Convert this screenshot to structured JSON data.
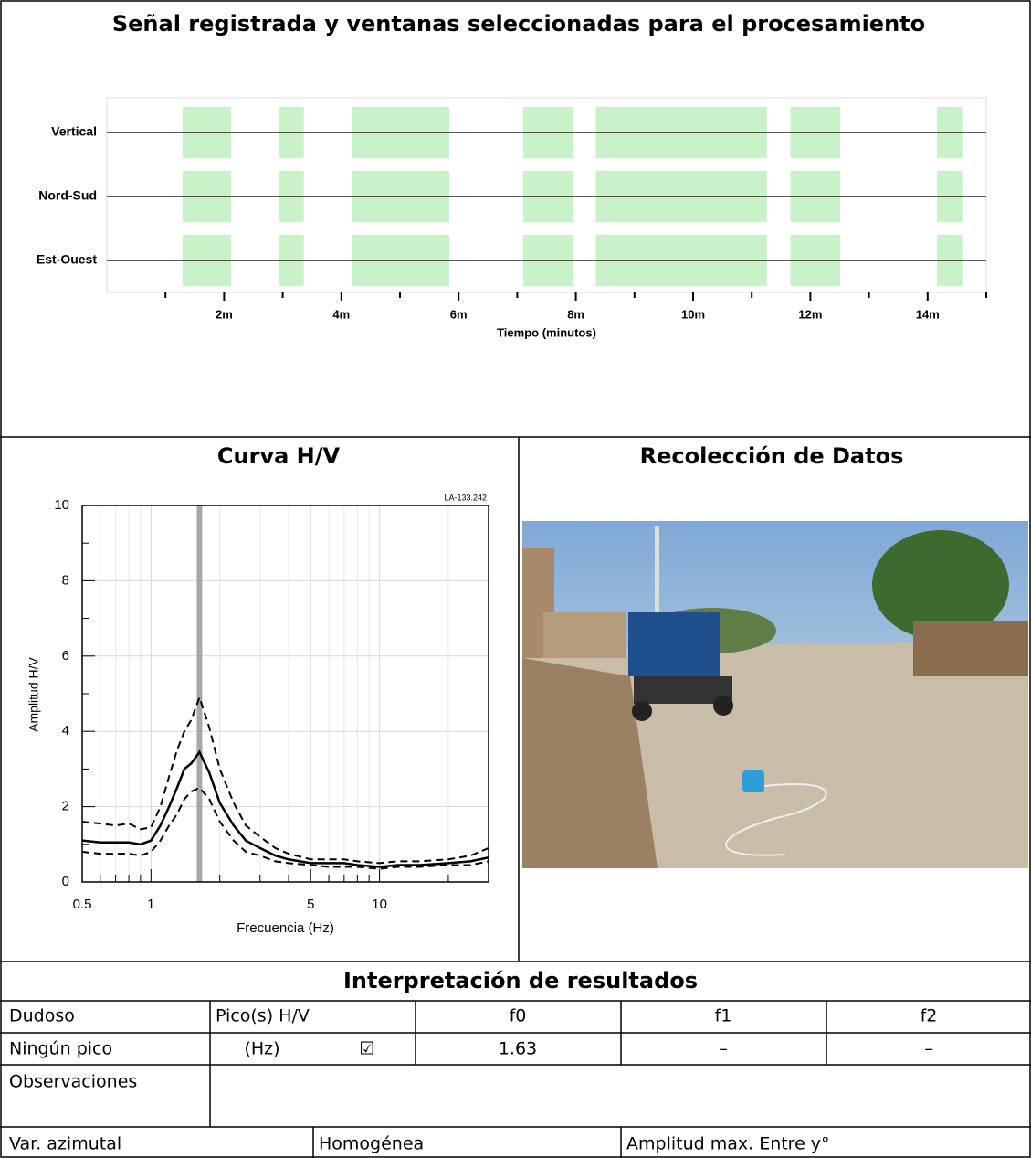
{
  "chart_data": [
    {
      "type": "signal",
      "title": "Señal registrada y ventanas seleccionadas para el procesamiento",
      "xlabel": "Tiempo (minutos)",
      "series": [
        {
          "name": "Vertical",
          "color": "#222222"
        },
        {
          "name": "Nord-Sud",
          "color": "#222222"
        },
        {
          "name": "Est-Ouest",
          "color": "#222222"
        }
      ],
      "windows": [
        [
          1.29,
          2.12
        ],
        [
          2.93,
          3.36
        ],
        [
          4.19,
          5.84
        ],
        [
          7.1,
          7.95
        ],
        [
          8.34,
          11.26
        ],
        [
          11.66,
          12.51
        ],
        [
          14.16,
          14.59
        ]
      ],
      "window_color": "#c9f2c9",
      "xlim": [
        0,
        15
      ],
      "xticks": [
        {
          "value": 2,
          "label": "2m"
        },
        {
          "value": 4,
          "label": "4m"
        },
        {
          "value": 6,
          "label": "6m"
        },
        {
          "value": 8,
          "label": "8m"
        },
        {
          "value": 10,
          "label": "10m"
        },
        {
          "value": 12,
          "label": "12m"
        },
        {
          "value": 14,
          "label": "14m"
        }
      ],
      "minor_xticks": [
        1,
        3,
        5,
        7,
        9,
        11,
        13,
        15
      ]
    },
    {
      "type": "line",
      "title": "Curva H/V",
      "xlabel": "Frecuencia (Hz)",
      "ylabel": "Amplitud H/V",
      "annotation": "LA-133.242",
      "log_x": true,
      "grid": true,
      "x": [
        0.5,
        0.6,
        0.7,
        0.8,
        0.9,
        1.0,
        1.1,
        1.2,
        1.3,
        1.4,
        1.5,
        1.63,
        1.8,
        2.0,
        2.3,
        2.6,
        3,
        3.5,
        4,
        5,
        6,
        7,
        8,
        10,
        12,
        15,
        20,
        25,
        30
      ],
      "series": [
        {
          "color": "#000000",
          "dash": false,
          "values": [
            1.1,
            1.05,
            1.05,
            1.05,
            1.0,
            1.1,
            1.5,
            2.0,
            2.5,
            3.0,
            3.15,
            3.45,
            2.9,
            2.1,
            1.5,
            1.1,
            0.9,
            0.7,
            0.6,
            0.5,
            0.5,
            0.5,
            0.45,
            0.4,
            0.45,
            0.45,
            0.5,
            0.55,
            0.65
          ]
        },
        {
          "color": "#000000",
          "dash": true,
          "values": [
            1.6,
            1.55,
            1.5,
            1.55,
            1.4,
            1.45,
            2.0,
            2.8,
            3.5,
            4.0,
            4.3,
            4.9,
            4.1,
            3.0,
            2.1,
            1.5,
            1.2,
            0.9,
            0.75,
            0.6,
            0.6,
            0.6,
            0.55,
            0.5,
            0.55,
            0.55,
            0.6,
            0.7,
            0.9
          ]
        },
        {
          "color": "#000000",
          "dash": true,
          "values": [
            0.8,
            0.75,
            0.75,
            0.75,
            0.7,
            0.8,
            1.1,
            1.5,
            1.8,
            2.2,
            2.4,
            2.5,
            2.2,
            1.6,
            1.1,
            0.8,
            0.7,
            0.55,
            0.5,
            0.45,
            0.4,
            0.4,
            0.4,
            0.35,
            0.4,
            0.4,
            0.45,
            0.45,
            0.55
          ]
        }
      ],
      "peak": 1.63,
      "peak_color": "#a8a8a8",
      "xlim": [
        0.5,
        30
      ],
      "xticks": [
        0.5,
        1,
        5,
        10
      ],
      "minor_xticks": [
        0.6,
        0.7,
        0.8,
        0.9,
        2,
        3,
        4,
        6,
        7,
        8,
        9,
        20,
        30
      ],
      "ylim": [
        0,
        10
      ],
      "yticks": [
        0,
        2,
        4,
        6,
        8,
        10
      ],
      "minor_yticks": [
        1,
        3,
        5,
        7,
        9
      ]
    }
  ],
  "photo": {
    "title": "Recolección de Datos"
  },
  "results": {
    "title": "Interpretación de resultados",
    "rows": [
      [
        "Dudoso",
        "Pico(s) H/V",
        "f0",
        "f1",
        "f2"
      ],
      [
        "Ningún pico",
        "(Hz)",
        "☑",
        "1.63",
        "–",
        "–"
      ],
      [
        "Observaciones"
      ],
      [
        "Var. azimutal",
        "Homogénea",
        "Amplitud max. Entre y°"
      ]
    ]
  }
}
